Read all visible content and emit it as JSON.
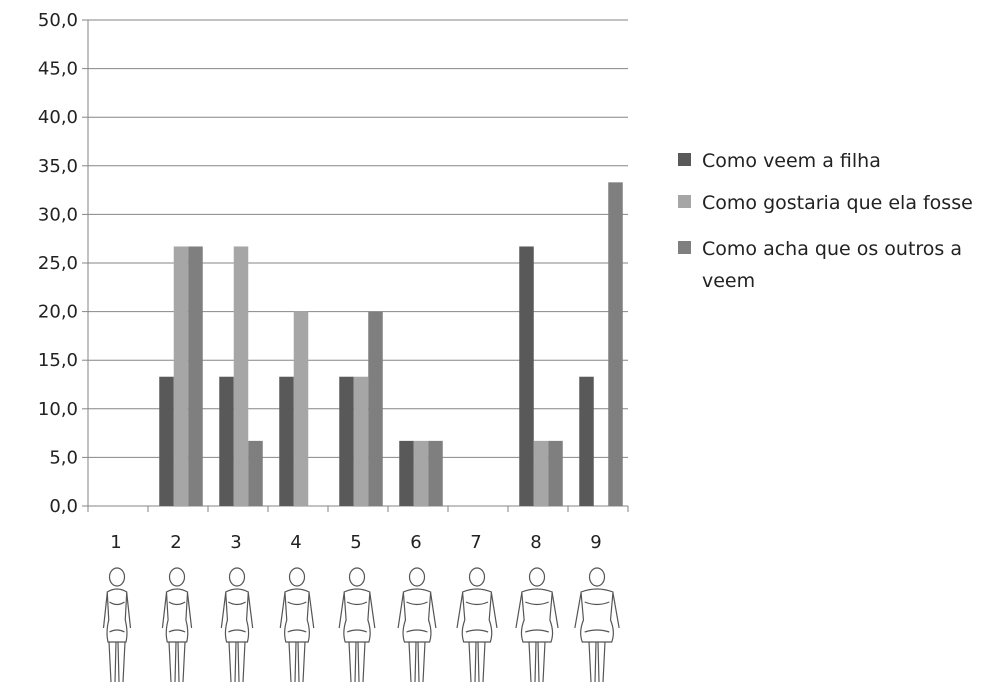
{
  "chart_data": {
    "type": "bar",
    "title": "",
    "xlabel": "",
    "ylabel": "",
    "categories": [
      "1",
      "2",
      "3",
      "4",
      "5",
      "6",
      "7",
      "8",
      "9"
    ],
    "ylim": [
      0,
      50
    ],
    "y_ticks": [
      "0,0",
      "5,0",
      "10,0",
      "15,0",
      "20,0",
      "25,0",
      "30,0",
      "35,0",
      "40,0",
      "45,0",
      "50,0"
    ],
    "grid": true,
    "legend_position": "right",
    "series": [
      {
        "name": "Como veem a filha",
        "color": "#595959",
        "values": [
          0,
          13.3,
          13.3,
          13.3,
          13.3,
          6.7,
          0,
          26.7,
          13.3
        ]
      },
      {
        "name": "Como gostaria que ela fosse",
        "color": "#a6a6a6",
        "values": [
          0,
          26.7,
          26.7,
          20.0,
          13.3,
          6.7,
          0,
          6.7,
          0
        ]
      },
      {
        "name": "Como acha que os outros a veem",
        "color": "#7f7f7f",
        "values": [
          0,
          26.7,
          6.7,
          0,
          20.0,
          6.7,
          0,
          6.7,
          33.3
        ]
      }
    ],
    "category_images": "female body silhouettes, increasing size from 1 to 9"
  },
  "legend": {
    "items": [
      {
        "label": "Como veem a filha",
        "color": "#595959"
      },
      {
        "label": "Como gostaria que ela fosse",
        "color": "#a6a6a6"
      },
      {
        "label": "Como acha que os outros a veem",
        "color": "#7f7f7f"
      }
    ]
  }
}
